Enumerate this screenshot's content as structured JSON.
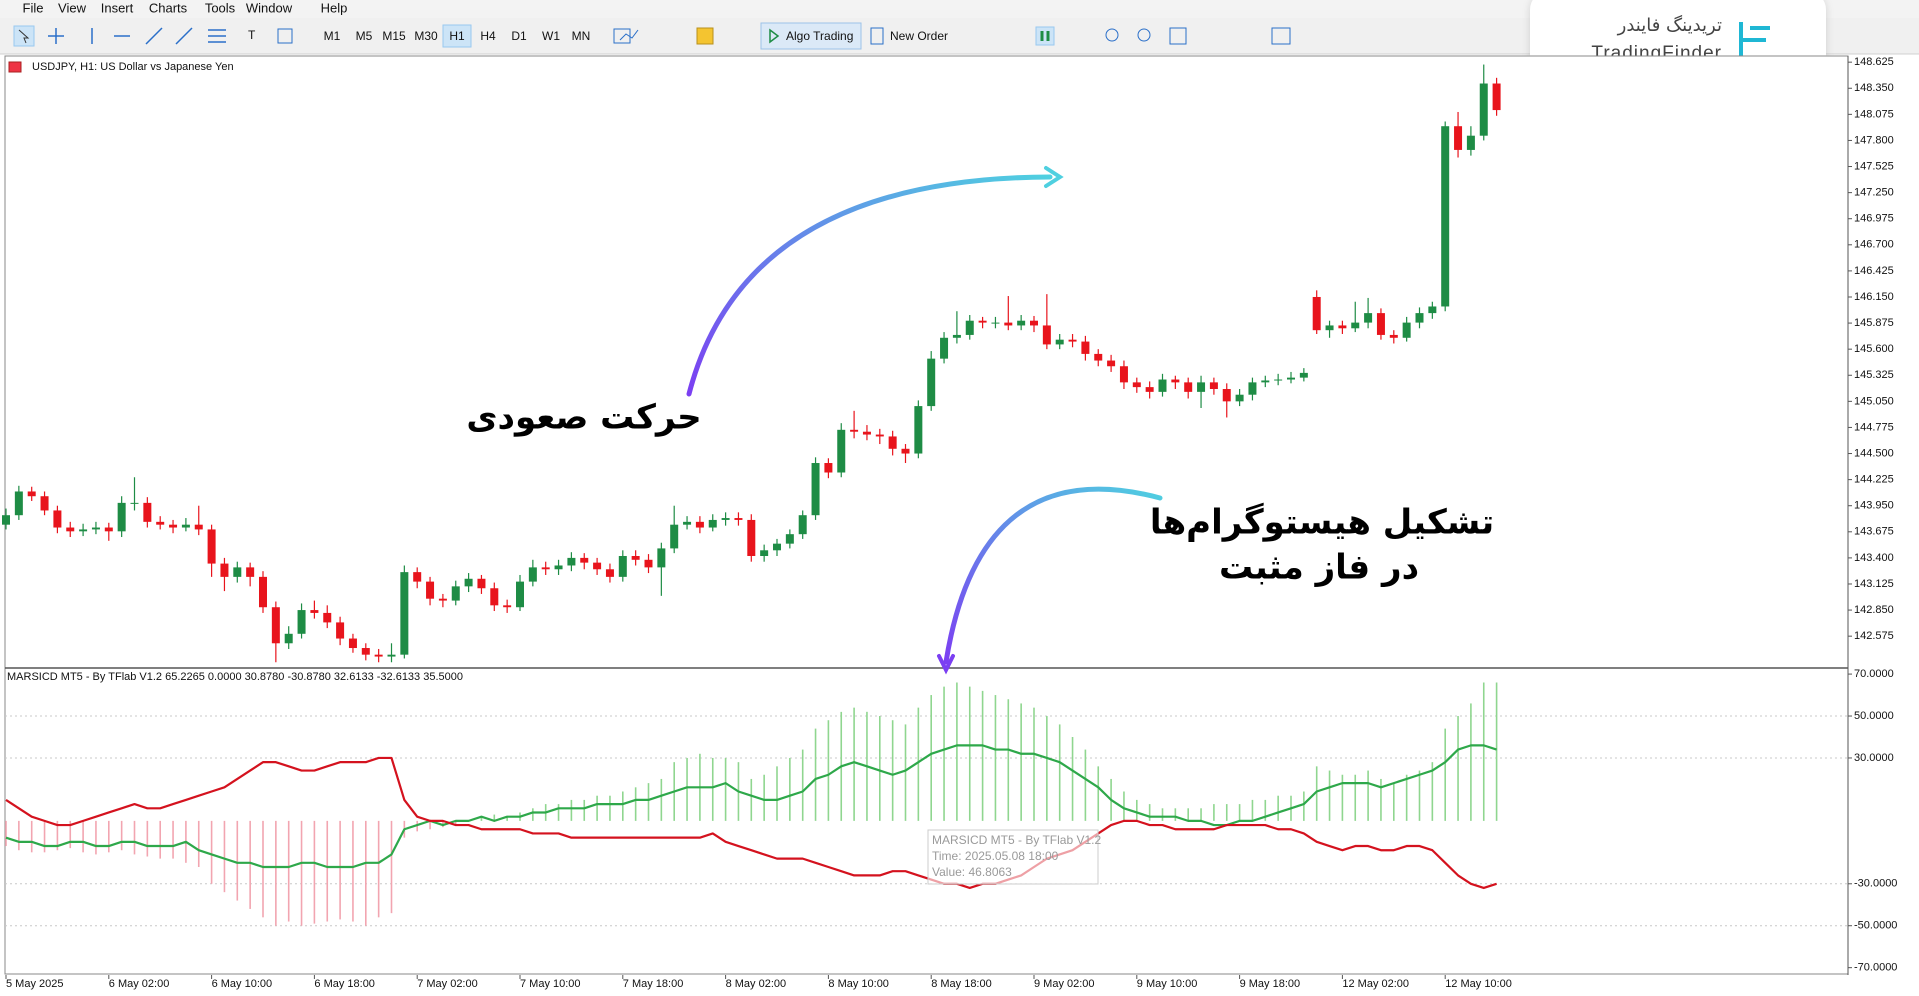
{
  "menu": [
    "File",
    "View",
    "Insert",
    "Charts",
    "Tools",
    "Window",
    "Help"
  ],
  "toolbar": {
    "timeframes": [
      "M1",
      "M5",
      "M15",
      "M30",
      "H1",
      "H4",
      "D1",
      "W1",
      "MN"
    ],
    "algo_trading": "Algo Trading",
    "new_order": "New Order"
  },
  "logo": {
    "fa": "تریدینگ فایندر",
    "en": "TradingFinder"
  },
  "chart": {
    "symbol_label": "USDJPY, H1:  US Dollar vs Japanese Yen",
    "up_color": "#1e8c45",
    "down_color": "#e8141c",
    "price_lim": [
      142.25,
      148.69
    ],
    "price_ticks": [
      {
        "value": 148.625,
        "label": "148.625"
      },
      {
        "value": 148.35,
        "label": "148.350"
      },
      {
        "value": 148.075,
        "label": "148.075"
      },
      {
        "value": 147.8,
        "label": "147.800"
      },
      {
        "value": 147.525,
        "label": "147.525"
      },
      {
        "value": 147.25,
        "label": "147.250"
      },
      {
        "value": 146.975,
        "label": "146.975"
      },
      {
        "value": 146.7,
        "label": "146.700"
      },
      {
        "value": 146.425,
        "label": "146.425"
      },
      {
        "value": 146.15,
        "label": "146.150"
      },
      {
        "value": 145.875,
        "label": "145.875"
      },
      {
        "value": 145.6,
        "label": "145.600"
      },
      {
        "value": 145.325,
        "label": "145.325"
      },
      {
        "value": 145.05,
        "label": "145.050"
      },
      {
        "value": 144.775,
        "label": "144.775"
      },
      {
        "value": 144.5,
        "label": "144.500"
      },
      {
        "value": 144.225,
        "label": "144.225"
      },
      {
        "value": 143.95,
        "label": "143.950"
      },
      {
        "value": 143.675,
        "label": "143.675"
      },
      {
        "value": 143.4,
        "label": "143.400"
      },
      {
        "value": 143.125,
        "label": "143.125"
      },
      {
        "value": 142.85,
        "label": "142.850"
      },
      {
        "value": 142.575,
        "label": "142.575"
      }
    ],
    "time_labels": [
      "5 May 2025",
      "6 May 02:00",
      "6 May 10:00",
      "6 May 18:00",
      "7 May 02:00",
      "7 May 10:00",
      "7 May 18:00",
      "8 May 02:00",
      "8 May 10:00",
      "8 May 18:00",
      "9 May 02:00",
      "9 May 10:00",
      "9 May 18:00",
      "12 May 02:00",
      "12 May 10:00"
    ],
    "candles": [
      [
        143.75,
        143.92,
        143.7,
        143.85
      ],
      [
        143.85,
        144.16,
        143.8,
        144.1
      ],
      [
        144.1,
        144.15,
        144.0,
        144.05
      ],
      [
        144.05,
        144.1,
        143.85,
        143.9
      ],
      [
        143.9,
        143.95,
        143.66,
        143.72
      ],
      [
        143.72,
        143.78,
        143.62,
        143.68
      ],
      [
        143.68,
        143.76,
        143.63,
        143.7
      ],
      [
        143.7,
        143.78,
        143.65,
        143.72
      ],
      [
        143.72,
        143.77,
        143.58,
        143.68
      ],
      [
        143.68,
        144.05,
        143.62,
        143.98
      ],
      [
        143.98,
        144.25,
        143.9,
        143.98
      ],
      [
        143.98,
        144.04,
        143.72,
        143.78
      ],
      [
        143.78,
        143.84,
        143.7,
        143.75
      ],
      [
        143.75,
        143.8,
        143.66,
        143.72
      ],
      [
        143.72,
        143.82,
        143.68,
        143.75
      ],
      [
        143.75,
        143.95,
        143.64,
        143.7
      ],
      [
        143.7,
        143.75,
        143.2,
        143.34
      ],
      [
        143.34,
        143.4,
        143.05,
        143.2
      ],
      [
        143.2,
        143.36,
        143.14,
        143.3
      ],
      [
        143.3,
        143.35,
        143.1,
        143.2
      ],
      [
        143.2,
        143.26,
        142.82,
        142.88
      ],
      [
        142.88,
        142.94,
        142.3,
        142.5
      ],
      [
        142.5,
        142.68,
        142.44,
        142.6
      ],
      [
        142.6,
        142.92,
        142.55,
        142.85
      ],
      [
        142.85,
        142.95,
        142.76,
        142.82
      ],
      [
        142.82,
        142.9,
        142.66,
        142.72
      ],
      [
        142.72,
        142.78,
        142.48,
        142.55
      ],
      [
        142.55,
        142.6,
        142.4,
        142.45
      ],
      [
        142.45,
        142.5,
        142.32,
        142.38
      ],
      [
        142.38,
        142.44,
        142.3,
        142.36
      ],
      [
        142.36,
        142.5,
        142.3,
        142.38
      ],
      [
        142.38,
        143.32,
        142.34,
        143.25
      ],
      [
        143.25,
        143.3,
        143.08,
        143.15
      ],
      [
        143.15,
        143.2,
        142.9,
        142.97
      ],
      [
        142.97,
        143.02,
        142.88,
        142.95
      ],
      [
        142.95,
        143.16,
        142.9,
        143.1
      ],
      [
        143.1,
        143.24,
        143.04,
        143.18
      ],
      [
        143.18,
        143.22,
        143.02,
        143.08
      ],
      [
        143.08,
        143.14,
        142.84,
        142.9
      ],
      [
        142.9,
        142.96,
        142.82,
        142.88
      ],
      [
        142.88,
        143.22,
        142.84,
        143.15
      ],
      [
        143.15,
        143.38,
        143.1,
        143.3
      ],
      [
        143.3,
        143.36,
        143.22,
        143.28
      ],
      [
        143.28,
        143.38,
        143.22,
        143.32
      ],
      [
        143.32,
        143.46,
        143.26,
        143.4
      ],
      [
        143.4,
        143.45,
        143.28,
        143.35
      ],
      [
        143.35,
        143.4,
        143.22,
        143.28
      ],
      [
        143.28,
        143.34,
        143.14,
        143.2
      ],
      [
        143.2,
        143.48,
        143.15,
        143.42
      ],
      [
        143.42,
        143.48,
        143.32,
        143.38
      ],
      [
        143.38,
        143.44,
        143.24,
        143.3
      ],
      [
        143.3,
        143.56,
        143.0,
        143.5
      ],
      [
        143.5,
        143.95,
        143.45,
        143.75
      ],
      [
        143.75,
        143.84,
        143.7,
        143.78
      ],
      [
        143.78,
        143.84,
        143.66,
        143.72
      ],
      [
        143.72,
        143.86,
        143.68,
        143.8
      ],
      [
        143.8,
        143.88,
        143.74,
        143.82
      ],
      [
        143.82,
        143.88,
        143.74,
        143.8
      ],
      [
        143.8,
        143.86,
        143.36,
        143.42
      ],
      [
        143.42,
        143.54,
        143.36,
        143.48
      ],
      [
        143.48,
        143.6,
        143.42,
        143.55
      ],
      [
        143.55,
        143.7,
        143.5,
        143.65
      ],
      [
        143.65,
        143.9,
        143.6,
        143.85
      ],
      [
        143.85,
        144.46,
        143.8,
        144.4
      ],
      [
        144.4,
        144.45,
        144.24,
        144.3
      ],
      [
        144.3,
        144.82,
        144.25,
        144.75
      ],
      [
        144.75,
        144.95,
        144.66,
        144.73
      ],
      [
        144.73,
        144.8,
        144.64,
        144.7
      ],
      [
        144.7,
        144.76,
        144.6,
        144.68
      ],
      [
        144.68,
        144.74,
        144.48,
        144.55
      ],
      [
        144.55,
        144.6,
        144.4,
        144.5
      ],
      [
        144.5,
        145.06,
        144.45,
        145.0
      ],
      [
        145.0,
        145.58,
        144.95,
        145.5
      ],
      [
        145.5,
        145.78,
        145.45,
        145.72
      ],
      [
        145.72,
        146.0,
        145.66,
        145.75
      ],
      [
        145.75,
        145.96,
        145.7,
        145.9
      ],
      [
        145.9,
        145.94,
        145.82,
        145.88
      ],
      [
        145.88,
        145.94,
        145.82,
        145.88
      ],
      [
        145.88,
        146.16,
        145.8,
        145.85
      ],
      [
        145.85,
        145.96,
        145.8,
        145.9
      ],
      [
        145.9,
        145.95,
        145.78,
        145.85
      ],
      [
        145.85,
        146.18,
        145.6,
        145.65
      ],
      [
        145.65,
        145.76,
        145.6,
        145.7
      ],
      [
        145.7,
        145.76,
        145.62,
        145.68
      ],
      [
        145.68,
        145.74,
        145.48,
        145.55
      ],
      [
        145.55,
        145.6,
        145.42,
        145.48
      ],
      [
        145.48,
        145.54,
        145.36,
        145.42
      ],
      [
        145.42,
        145.48,
        145.18,
        145.25
      ],
      [
        145.25,
        145.3,
        145.14,
        145.2
      ],
      [
        145.2,
        145.26,
        145.08,
        145.15
      ],
      [
        145.15,
        145.34,
        145.1,
        145.28
      ],
      [
        145.28,
        145.32,
        145.18,
        145.25
      ],
      [
        145.25,
        145.3,
        145.08,
        145.15
      ],
      [
        145.15,
        145.32,
        144.98,
        145.25
      ],
      [
        145.25,
        145.3,
        145.12,
        145.18
      ],
      [
        145.18,
        145.24,
        144.88,
        145.05
      ],
      [
        145.05,
        145.18,
        145.0,
        145.12
      ],
      [
        145.12,
        145.3,
        145.06,
        145.25
      ],
      [
        145.25,
        145.32,
        145.2,
        145.27
      ],
      [
        145.27,
        145.34,
        145.22,
        145.28
      ],
      [
        145.28,
        145.36,
        145.24,
        145.3
      ],
      [
        145.3,
        145.4,
        145.26,
        145.35
      ],
      [
        146.15,
        146.22,
        145.76,
        145.8
      ],
      [
        145.8,
        145.9,
        145.72,
        145.85
      ],
      [
        145.85,
        145.9,
        145.76,
        145.82
      ],
      [
        145.82,
        146.1,
        145.78,
        145.88
      ],
      [
        145.88,
        146.14,
        145.82,
        145.98
      ],
      [
        145.98,
        146.03,
        145.7,
        145.75
      ],
      [
        145.75,
        145.8,
        145.66,
        145.72
      ],
      [
        145.72,
        145.94,
        145.68,
        145.88
      ],
      [
        145.88,
        146.04,
        145.82,
        145.98
      ],
      [
        145.98,
        146.1,
        145.92,
        146.05
      ],
      [
        146.05,
        148.0,
        146.0,
        147.95
      ],
      [
        147.95,
        148.1,
        147.62,
        147.7
      ],
      [
        147.7,
        147.95,
        147.64,
        147.85
      ],
      [
        147.85,
        148.6,
        147.8,
        148.4
      ],
      [
        148.4,
        148.46,
        148.06,
        148.12
      ]
    ]
  },
  "indicator": {
    "label": "MARSICD MT5 - By TFlab V1.2 65.2265 0.0000 30.8780 -30.8780 32.6133 -32.6133 35.5000",
    "ylim": [
      -73.5,
      72.9
    ],
    "ticks": [
      {
        "value": 70,
        "label": "70.0000"
      },
      {
        "value": 50,
        "label": "50.0000"
      },
      {
        "value": 30,
        "label": "30.0000"
      },
      {
        "value": -30,
        "label": "-30.0000"
      },
      {
        "value": -50,
        "label": "-50.0000"
      },
      {
        "value": -70,
        "label": "-70.0000"
      }
    ],
    "hist_up_color": "#8fd68f",
    "hist_down_color": "#f2a5b0",
    "histogram": [
      -12,
      -14,
      -15,
      -15,
      -14,
      -13,
      -15,
      -16,
      -15,
      -14,
      -16,
      -17,
      -18,
      -18,
      -20,
      -22,
      -30,
      -34,
      -38,
      -42,
      -46,
      -50,
      -48,
      -50,
      -49,
      -48,
      -47,
      -48,
      -50,
      -46,
      -44,
      -8,
      -5,
      -4,
      -3,
      -2,
      0,
      2,
      3,
      2,
      4,
      6,
      8,
      8,
      10,
      10,
      12,
      12,
      14,
      16,
      18,
      20,
      28,
      30,
      32,
      30,
      30,
      28,
      20,
      22,
      26,
      30,
      34,
      44,
      48,
      52,
      54,
      52,
      50,
      48,
      46,
      54,
      60,
      64,
      66,
      64,
      62,
      60,
      58,
      56,
      54,
      50,
      46,
      40,
      34,
      26,
      20,
      14,
      10,
      8,
      6,
      6,
      6,
      6,
      8,
      8,
      8,
      10,
      10,
      12,
      12,
      14,
      26,
      24,
      22,
      22,
      24,
      20,
      18,
      22,
      24,
      28,
      44,
      50,
      56,
      66,
      66
    ],
    "lines": [
      {
        "color": "#2ea84a",
        "values": [
          -8,
          -10,
          -10,
          -12,
          -12,
          -10,
          -10,
          -12,
          -12,
          -10,
          -10,
          -12,
          -12,
          -12,
          -10,
          -14,
          -16,
          -18,
          -20,
          -20,
          -22,
          -22,
          -22,
          -20,
          -20,
          -22,
          -22,
          -22,
          -20,
          -20,
          -16,
          -4,
          -2,
          0,
          -2,
          0,
          0,
          2,
          0,
          2,
          2,
          4,
          4,
          6,
          6,
          6,
          8,
          8,
          8,
          10,
          10,
          12,
          14,
          16,
          16,
          16,
          18,
          14,
          12,
          10,
          10,
          12,
          14,
          20,
          22,
          26,
          28,
          26,
          24,
          22,
          24,
          28,
          32,
          34,
          36,
          36,
          36,
          34,
          34,
          32,
          32,
          30,
          28,
          24,
          20,
          16,
          10,
          6,
          4,
          2,
          2,
          2,
          0,
          0,
          -2,
          -2,
          0,
          0,
          2,
          4,
          6,
          8,
          14,
          16,
          18,
          18,
          18,
          16,
          18,
          20,
          22,
          24,
          28,
          34,
          36,
          36,
          34
        ]
      },
      {
        "color": "#d4121e",
        "values": [
          10,
          6,
          2,
          0,
          -2,
          -2,
          0,
          2,
          4,
          6,
          8,
          6,
          6,
          8,
          10,
          12,
          14,
          16,
          20,
          24,
          28,
          28,
          26,
          24,
          24,
          26,
          28,
          28,
          28,
          30,
          30,
          10,
          2,
          0,
          0,
          -2,
          -2,
          -4,
          -4,
          -4,
          -4,
          -6,
          -6,
          -6,
          -8,
          -8,
          -8,
          -8,
          -8,
          -8,
          -8,
          -8,
          -8,
          -8,
          -8,
          -6,
          -10,
          -12,
          -14,
          -16,
          -18,
          -18,
          -18,
          -20,
          -22,
          -24,
          -26,
          -26,
          -26,
          -24,
          -24,
          -26,
          -28,
          -30,
          -30,
          -32,
          -30,
          -30,
          -28,
          -26,
          -22,
          -18,
          -16,
          -14,
          -10,
          -6,
          -2,
          0,
          0,
          -2,
          -2,
          -4,
          -4,
          -4,
          -4,
          -2,
          -2,
          -2,
          -2,
          -4,
          -4,
          -6,
          -10,
          -12,
          -14,
          -12,
          -12,
          -14,
          -14,
          -12,
          -12,
          -14,
          -20,
          -26,
          -30,
          -32,
          -30
        ]
      }
    ],
    "tooltip": {
      "title": "MARSICD MT5 - By TFlab V1.2",
      "time": "Time: 2025.05.08 18:00",
      "value": "Value: 46.8063"
    }
  },
  "annotations": {
    "rise": "حرکت صعودی",
    "histogram_line1": "تشکیل هیستوگرام‌ها",
    "histogram_line2": "در فاز مثبت"
  }
}
